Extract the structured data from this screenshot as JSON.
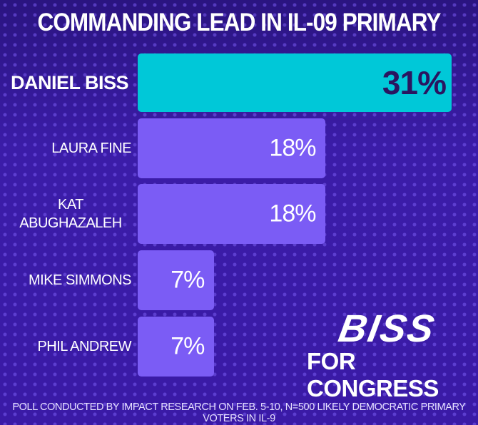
{
  "chart_data": {
    "type": "bar",
    "orientation": "horizontal",
    "title": "COMMANDING LEAD IN IL-09 PRIMARY",
    "categories": [
      "DANIEL BISS",
      "LAURA FINE",
      "KAT ABUGHAZALEH",
      "MIKE SIMMONS",
      "PHIL ANDREW"
    ],
    "values": [
      31,
      18,
      18,
      7,
      7
    ],
    "value_labels": [
      "31%",
      "18%",
      "18%",
      "7%",
      "7%"
    ],
    "unit": "%",
    "colors": [
      "#00c8d8",
      "#7b5cf5",
      "#7b5cf5",
      "#7b5cf5",
      "#7b5cf5"
    ],
    "label_colors": [
      "#2a1560",
      "#ffffff",
      "#ffffff",
      "#ffffff",
      "#ffffff"
    ],
    "xlim": [
      0,
      31
    ]
  },
  "logo": {
    "name": "BISS",
    "tagline": "FOR CONGRESS"
  },
  "footnote": "POLL CONDUCTED BY IMPACT RESEARCH ON FEB. 5-10, N=500 LIKELY DEMOCRATIC PRIMARY VOTERS IN IL-9"
}
